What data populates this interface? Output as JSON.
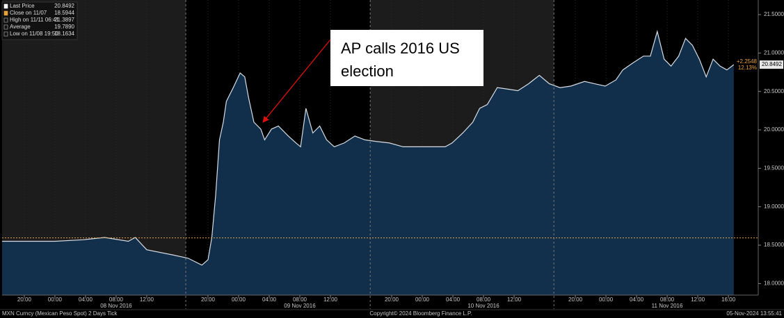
{
  "chart_data": {
    "type": "area",
    "x": [
      -2.9,
      0.5,
      4,
      7.7,
      10.5,
      13.6,
      14.5,
      16,
      19.5,
      21.4,
      23.2,
      24,
      24.5,
      25,
      25.5,
      26,
      26.4,
      27.3,
      28.2,
      28.8,
      29.3,
      30,
      30.9,
      31.4,
      32.3,
      33.2,
      34.5,
      35.5,
      36.1,
      36.8,
      37.7,
      38.6,
      39.5,
      40.5,
      41.8,
      43.2,
      44.5,
      45.9,
      47.7,
      49.5,
      51.4,
      53.2,
      55,
      55.9,
      57.3,
      58.6,
      59.5,
      60.5,
      61.8,
      63.2,
      64.5,
      65.9,
      67.3,
      68.6,
      70,
      71.4,
      73.2,
      74.5,
      75.9,
      77.3,
      78.2,
      79.5,
      80.9,
      81.8,
      82.7,
      83.6,
      84.5,
      85.5,
      86.4,
      87.3,
      88.2,
      89.1,
      90,
      90.9,
      91.8,
      92.7
    ],
    "series": [
      {
        "name": "Last Price",
        "color": "#d8dee6",
        "fill": "#12304f",
        "values": [
          18.55,
          18.55,
          18.55,
          18.57,
          18.6,
          18.55,
          18.6,
          18.44,
          18.37,
          18.33,
          18.24,
          18.31,
          18.6,
          19.15,
          19.87,
          20.1,
          20.37,
          20.55,
          20.74,
          20.69,
          20.42,
          20.1,
          20.01,
          19.87,
          20.01,
          20.05,
          19.92,
          19.83,
          19.78,
          20.28,
          19.96,
          20.05,
          19.87,
          19.78,
          19.83,
          19.92,
          19.87,
          19.85,
          19.83,
          19.78,
          19.78,
          19.78,
          19.78,
          19.83,
          19.96,
          20.1,
          20.28,
          20.33,
          20.55,
          20.53,
          20.51,
          20.6,
          20.71,
          20.6,
          20.55,
          20.57,
          20.63,
          20.6,
          20.57,
          20.65,
          20.78,
          20.87,
          20.96,
          20.96,
          21.28,
          20.92,
          20.83,
          20.96,
          21.19,
          21.1,
          20.92,
          20.69,
          20.92,
          20.83,
          20.78,
          20.8492
        ]
      }
    ],
    "ref_line": {
      "value": 18.5944,
      "color": "#e8a23a"
    },
    "xlim": [
      -2.9,
      95.9
    ],
    "ylim": [
      17.85,
      21.69
    ],
    "xticks": [
      {
        "value": 0,
        "label": "20:00"
      },
      {
        "value": 4,
        "label": "00:00"
      },
      {
        "value": 8,
        "label": "04:00"
      },
      {
        "value": 12,
        "label": "08:00"
      },
      {
        "value": 16,
        "label": "12:00"
      },
      {
        "value": 24,
        "label": "20:00"
      },
      {
        "value": 28,
        "label": "00:00"
      },
      {
        "value": 32,
        "label": "04:00"
      },
      {
        "value": 36,
        "label": "08:00"
      },
      {
        "value": 40,
        "label": "12:00"
      },
      {
        "value": 48,
        "label": "20:00"
      },
      {
        "value": 52,
        "label": "00:00"
      },
      {
        "value": 56,
        "label": "04:00"
      },
      {
        "value": 60,
        "label": "08:00"
      },
      {
        "value": 64,
        "label": "12:00"
      },
      {
        "value": 72,
        "label": "20:00"
      },
      {
        "value": 76,
        "label": "00:00"
      },
      {
        "value": 80,
        "label": "04:00"
      },
      {
        "value": 84,
        "label": "08:00"
      },
      {
        "value": 88,
        "label": "12:00"
      },
      {
        "value": 92,
        "label": "16:00"
      }
    ],
    "date_labels": [
      {
        "value": 12,
        "label": "08 Nov 2016"
      },
      {
        "value": 36,
        "label": "09 Nov 2016"
      },
      {
        "value": 60,
        "label": "10 Nov 2016"
      },
      {
        "value": 84,
        "label": "11 Nov 2016"
      }
    ],
    "session_breaks": [
      21.1,
      45.2,
      69.2
    ],
    "yticks": [
      {
        "value": 18,
        "label": "18.0000"
      },
      {
        "value": 18.5,
        "label": "18.5000"
      },
      {
        "value": 19,
        "label": "19.0000"
      },
      {
        "value": 19.5,
        "label": "19.5000"
      },
      {
        "value": 20,
        "label": "20.0000"
      },
      {
        "value": 20.5,
        "label": "20.5000"
      },
      {
        "value": 21,
        "label": "21.0000"
      },
      {
        "value": 21.5,
        "label": "21.5000"
      }
    ],
    "legend": [
      {
        "label": "Last Price",
        "value": "20.8492"
      },
      {
        "label": "Close on 11/07",
        "value": "18.5944"
      },
      {
        "label": "High on 11/11 06:41",
        "value": "21.3897"
      },
      {
        "label": "Average",
        "value": "19.7890"
      },
      {
        "label": "Low on 11/08 19:50",
        "value": "18.1634"
      }
    ],
    "change": "+2.2548",
    "change_pct": "12.13%",
    "annotation": [
      "AP calls 2016 US",
      "election"
    ],
    "footer": {
      "left": "MXN Curncy (Mexican Peso Spot) 2 Days  Tick",
      "center": "Copyright© 2024 Bloomberg Finance L.P.",
      "right": "05-Nov-2024 13:55:41"
    }
  }
}
